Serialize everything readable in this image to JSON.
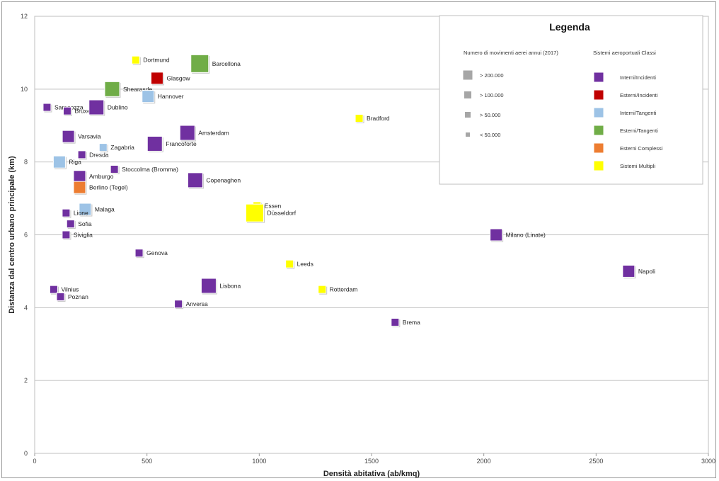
{
  "chart_data": {
    "type": "scatter",
    "xlabel": "Densità abitativa  (ab/kmq)",
    "ylabel": "Distanza dal centro urbano principale (km)",
    "xlim": [
      0,
      3000
    ],
    "ylim": [
      0,
      12
    ],
    "x_ticks": [
      "0",
      "500",
      "1000",
      "1500",
      "2000",
      "2500",
      "3000"
    ],
    "y_ticks": [
      "0",
      "2",
      "4",
      "6",
      "8",
      "10",
      "12"
    ],
    "grid": true,
    "legend": {
      "title": "Legenda",
      "size_title": "Numero di movimenti aerei annui (2017)",
      "sizes": [
        {
          "label": "> 200.000",
          "level": 4
        },
        {
          "label": "> 100.000",
          "level": 3
        },
        {
          "label": "> 50.000",
          "level": 2
        },
        {
          "label": "< 50.000",
          "level": 1
        }
      ],
      "class_title": "Sistemi aeroportuali Classi",
      "classes": [
        {
          "key": "II",
          "label": "Interni/Incidenti",
          "color": "#7030a0"
        },
        {
          "key": "EI",
          "label": "Esterni/Incidenti",
          "color": "#c00000"
        },
        {
          "key": "IT",
          "label": "Interni/Tangenti",
          "color": "#9dc3e6"
        },
        {
          "key": "ET",
          "label": "Esterni/Tangenti",
          "color": "#70ad47"
        },
        {
          "key": "EC",
          "label": "Esterni Complessi",
          "color": "#ed7d31"
        },
        {
          "key": "MU",
          "label": "Sistemi Multipli",
          "color": "#ffff00"
        }
      ],
      "placement": "top-right"
    },
    "points": [
      {
        "name": "Saragozza",
        "x": 55,
        "y": 9.5,
        "cls": "II",
        "size": 1
      },
      {
        "name": "Bruxelles",
        "x": 145,
        "y": 9.4,
        "cls": "II",
        "size": 1
      },
      {
        "name": "Dortmund",
        "x": 450,
        "y": 10.8,
        "cls": "MU",
        "size": 1
      },
      {
        "name": "Barcellona",
        "x": 735,
        "y": 10.7,
        "cls": "ET",
        "size": 4
      },
      {
        "name": "Glasgow",
        "x": 545,
        "y": 10.3,
        "cls": "EI",
        "size": 2
      },
      {
        "name": "Shearasde",
        "x": 345,
        "y": 10.0,
        "cls": "ET",
        "size": 3
      },
      {
        "name": "Hannover",
        "x": 505,
        "y": 9.8,
        "cls": "IT",
        "size": 2
      },
      {
        "name": "Dublino",
        "x": 275,
        "y": 9.5,
        "cls": "II",
        "size": 3
      },
      {
        "name": "Varsavia",
        "x": 150,
        "y": 8.7,
        "cls": "II",
        "size": 2
      },
      {
        "name": "Amsterdam",
        "x": 680,
        "y": 8.8,
        "cls": "II",
        "size": 3
      },
      {
        "name": "Zagabria",
        "x": 305,
        "y": 8.4,
        "cls": "IT",
        "size": 1
      },
      {
        "name": "Francoforte",
        "x": 535,
        "y": 8.5,
        "cls": "II",
        "size": 3
      },
      {
        "name": "Dresda",
        "x": 210,
        "y": 8.2,
        "cls": "II",
        "size": 1
      },
      {
        "name": "Riga",
        "x": 110,
        "y": 8.0,
        "cls": "IT",
        "size": 2
      },
      {
        "name": "Stoccolma (Bromma)",
        "x": 355,
        "y": 7.8,
        "cls": "II",
        "size": 1
      },
      {
        "name": "Amburgo",
        "x": 200,
        "y": 7.6,
        "cls": "II",
        "size": 2
      },
      {
        "name": "Copenaghen",
        "x": 715,
        "y": 7.5,
        "cls": "II",
        "size": 3
      },
      {
        "name": "Berlino (Tegel)",
        "x": 200,
        "y": 7.3,
        "cls": "EC",
        "size": 2
      },
      {
        "name": "Bradford",
        "x": 1445,
        "y": 9.2,
        "cls": "MU",
        "size": 1
      },
      {
        "name": "Malaga",
        "x": 225,
        "y": 6.7,
        "cls": "IT",
        "size": 2
      },
      {
        "name": "Lione",
        "x": 140,
        "y": 6.6,
        "cls": "II",
        "size": 1
      },
      {
        "name": "Essen",
        "x": 990,
        "y": 6.8,
        "cls": "MU",
        "size": 1
      },
      {
        "name": "Düsseldorf",
        "x": 980,
        "y": 6.6,
        "cls": "MU",
        "size": 4
      },
      {
        "name": "Sofia",
        "x": 160,
        "y": 6.3,
        "cls": "II",
        "size": 1
      },
      {
        "name": "Siviglia",
        "x": 140,
        "y": 6.0,
        "cls": "II",
        "size": 1
      },
      {
        "name": "Milano (Linate)",
        "x": 2055,
        "y": 6.0,
        "cls": "II",
        "size": 2
      },
      {
        "name": "Genova",
        "x": 465,
        "y": 5.5,
        "cls": "II",
        "size": 1
      },
      {
        "name": "Leeds",
        "x": 1135,
        "y": 5.2,
        "cls": "MU",
        "size": 1
      },
      {
        "name": "Napoli",
        "x": 2645,
        "y": 5.0,
        "cls": "II",
        "size": 2
      },
      {
        "name": "Lisbona",
        "x": 775,
        "y": 4.6,
        "cls": "II",
        "size": 3
      },
      {
        "name": "Rotterdam",
        "x": 1280,
        "y": 4.5,
        "cls": "MU",
        "size": 1
      },
      {
        "name": "Vilnius",
        "x": 85,
        "y": 4.5,
        "cls": "II",
        "size": 1
      },
      {
        "name": "Poznan",
        "x": 115,
        "y": 4.3,
        "cls": "II",
        "size": 1
      },
      {
        "name": "Anversa",
        "x": 640,
        "y": 4.1,
        "cls": "II",
        "size": 1
      },
      {
        "name": "Brema",
        "x": 1605,
        "y": 3.6,
        "cls": "II",
        "size": 1
      }
    ]
  }
}
